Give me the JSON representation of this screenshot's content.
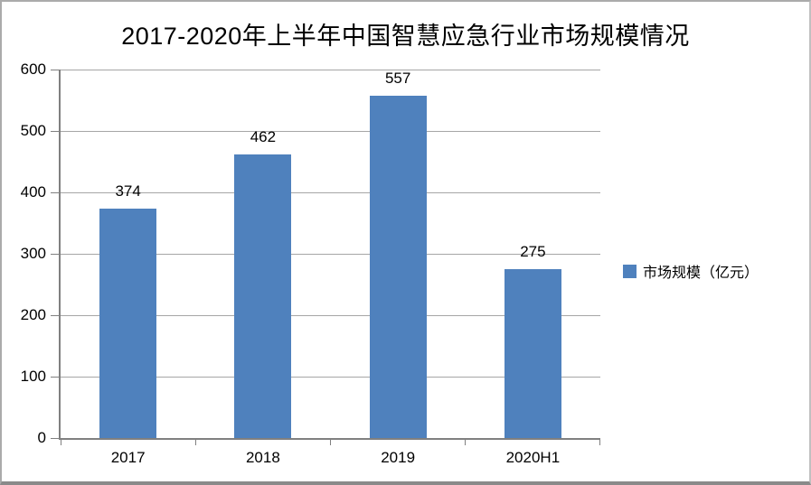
{
  "chart_data": {
    "type": "bar",
    "title": "2017-2020年上半年中国智慧应急行业市场规模情况",
    "categories": [
      "2017",
      "2018",
      "2019",
      "2020H1"
    ],
    "values": [
      374,
      462,
      557,
      275
    ],
    "data_labels": [
      "374",
      "462",
      "557",
      "275"
    ],
    "series_name": "市场规模（亿元）",
    "xlabel": "",
    "ylabel": "",
    "ylim": [
      0,
      600
    ],
    "ytick_interval": 100,
    "ytick_labels": [
      "0",
      "100",
      "200",
      "300",
      "400",
      "500",
      "600"
    ],
    "grid": true,
    "legend": {
      "label": "市场规模（亿元）",
      "position": "right-middle"
    }
  },
  "colors": {
    "bar": "#4F81BD",
    "gridline": "#A6A6A6",
    "axis": "#808080",
    "text": "#000000",
    "background": "#FFFFFF",
    "frame_border": "#ABABAB"
  }
}
